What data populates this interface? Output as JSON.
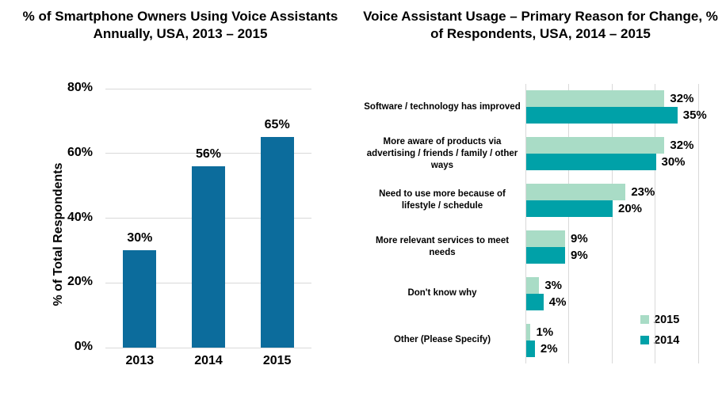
{
  "page": {
    "background": "#ffffff"
  },
  "chart_data": [
    {
      "type": "bar",
      "title": "% of Smartphone Owners Using Voice Assistants Annually, USA, 2013 – 2015",
      "ylabel": "% of Total Respondents",
      "xlabel": "",
      "categories": [
        "2013",
        "2014",
        "2015"
      ],
      "values": [
        30,
        56,
        65
      ],
      "value_suffix": "%",
      "ylim": [
        0,
        80
      ],
      "ytick_step": 20,
      "ytick_labels": [
        "0%",
        "20%",
        "40%",
        "60%",
        "80%"
      ],
      "grid": "horizontal",
      "legend_position": "none",
      "bar_color": "#0c6c9c",
      "grid_color": "#d9d9d9",
      "text_color": "#000000"
    },
    {
      "type": "bar-horizontal",
      "title": "Voice Assistant Usage – Primary Reason for Change, % of Respondents, USA, 2014 – 2015",
      "xlabel": "",
      "ylabel": "",
      "categories": [
        "Software / technology has improved",
        "More aware of products via advertising / friends / family / other ways",
        "Need to use more because of lifestyle / schedule",
        "More relevant services to meet needs",
        "Don't know why",
        "Other (Please Specify)"
      ],
      "series": [
        {
          "name": "2015",
          "color": "#a9dcc6",
          "values": [
            32,
            32,
            23,
            9,
            3,
            1
          ]
        },
        {
          "name": "2014",
          "color": "#00a1a8",
          "values": [
            35,
            30,
            20,
            9,
            4,
            2
          ]
        }
      ],
      "value_suffix": "%",
      "xlim": [
        0,
        40
      ],
      "xtick_step": 10,
      "grid": "vertical",
      "legend_position": "bottom-right",
      "grid_color": "#d9d9d9",
      "text_color": "#000000"
    }
  ]
}
